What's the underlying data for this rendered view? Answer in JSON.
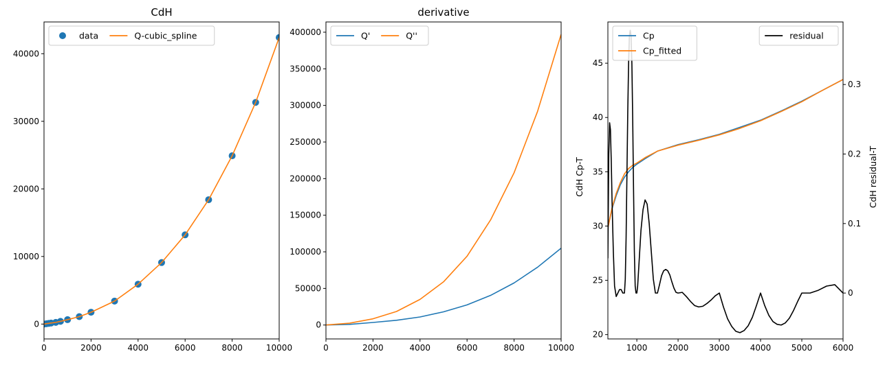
{
  "chart_data": [
    {
      "type": "line",
      "title": "CdH",
      "xlim": [
        0,
        10000
      ],
      "ylim": [
        -2200,
        44700
      ],
      "x_ticks": [
        0,
        2000,
        4000,
        6000,
        8000,
        10000
      ],
      "y_ticks": [
        0,
        10000,
        20000,
        30000,
        40000
      ],
      "legend_position": "top-left",
      "legend_columns": 2,
      "colors": {
        "data": "#1f77b4",
        "Q-cubic_spline": "#ff7f0e"
      },
      "series": [
        {
          "name": "data",
          "kind": "scatter",
          "x": [
            1,
            100,
            200,
            300,
            500,
            700,
            1000,
            1500,
            2000,
            3000,
            4000,
            5000,
            6000,
            7000,
            8000,
            9000,
            10000
          ],
          "y": [
            0,
            50,
            100,
            150,
            250,
            400,
            650,
            1100,
            1750,
            3400,
            5900,
            9100,
            13200,
            18400,
            24900,
            32800,
            42400
          ]
        },
        {
          "name": "Q-cubic_spline",
          "kind": "line",
          "x": [
            1,
            100,
            200,
            300,
            500,
            700,
            1000,
            1500,
            2000,
            3000,
            4000,
            5000,
            6000,
            7000,
            8000,
            9000,
            10000
          ],
          "y": [
            0,
            50,
            100,
            150,
            250,
            400,
            650,
            1100,
            1750,
            3400,
            5900,
            9100,
            13200,
            18400,
            24900,
            32800,
            42400
          ]
        }
      ]
    },
    {
      "type": "line",
      "title": "derivative",
      "xlim": [
        0,
        10000
      ],
      "ylim": [
        -19000,
        414000
      ],
      "x_ticks": [
        0,
        2000,
        4000,
        6000,
        8000,
        10000
      ],
      "y_ticks": [
        0,
        50000,
        100000,
        150000,
        200000,
        250000,
        300000,
        350000,
        400000
      ],
      "legend_position": "top-left",
      "legend_columns": 2,
      "colors": {
        "Q'": "#1f77b4",
        "Q''": "#ff7f0e"
      },
      "series": [
        {
          "name": "Q'",
          "x": [
            0,
            1000,
            2000,
            3000,
            4000,
            5000,
            6000,
            7000,
            8000,
            9000,
            10000
          ],
          "y": [
            0,
            900,
            3500,
            6500,
            11000,
            18000,
            27500,
            40500,
            57500,
            79000,
            105000
          ]
        },
        {
          "name": "Q''",
          "x": [
            0,
            1000,
            2000,
            3000,
            4000,
            5000,
            6000,
            7000,
            8000,
            9000,
            10000
          ],
          "y": [
            0,
            2500,
            8500,
            18500,
            35000,
            59000,
            94000,
            143500,
            208000,
            292000,
            397000
          ]
        }
      ]
    },
    {
      "type": "line",
      "title": "",
      "xlim": [
        298,
        6000
      ],
      "x_ticks": [
        1000,
        2000,
        3000,
        4000,
        5000,
        6000
      ],
      "ylabel": "CdH Cp-T",
      "ylim": [
        19.6,
        48.8
      ],
      "y_ticks": [
        20,
        25,
        30,
        35,
        40,
        45
      ],
      "ylabel_right": "CdH residual-T",
      "ylim_right": [
        -0.066,
        0.39
      ],
      "y_ticks_right": [
        0.0,
        0.1,
        0.2,
        0.3
      ],
      "legend_left_position": "top-left",
      "legend_right_position": "top-right",
      "colors": {
        "Cp": "#1f77b4",
        "Cp_fitted": "#ff7f0e",
        "residual": "#000000"
      },
      "series": [
        {
          "name": "Cp",
          "axis": "left",
          "x": [
            298,
            400,
            500,
            600,
            700,
            800,
            900,
            1000,
            1200,
            1500,
            2000,
            2500,
            3000,
            3500,
            4000,
            4500,
            5000,
            5500,
            6000
          ],
          "y": [
            29.9,
            31.6,
            32.8,
            33.8,
            34.5,
            35.0,
            35.4,
            35.7,
            36.2,
            36.9,
            37.5,
            37.95,
            38.45,
            39.1,
            39.75,
            40.6,
            41.5,
            42.5,
            43.5
          ]
        },
        {
          "name": "Cp_fitted",
          "axis": "left",
          "x": [
            298,
            400,
            500,
            600,
            700,
            800,
            900,
            1000,
            1200,
            1500,
            2000,
            2500,
            3000,
            3500,
            4000,
            4500,
            5000,
            5500,
            6000
          ],
          "y": [
            29.8,
            31.7,
            33.0,
            34.0,
            34.8,
            35.3,
            35.6,
            35.8,
            36.3,
            36.9,
            37.45,
            37.9,
            38.4,
            39.0,
            39.7,
            40.55,
            41.45,
            42.5,
            43.5
          ]
        },
        {
          "name": "residual",
          "axis": "right",
          "x": [
            298,
            320,
            340,
            360,
            380,
            400,
            430,
            460,
            500,
            540,
            580,
            620,
            660,
            690,
            700,
            720,
            740,
            760,
            780,
            800,
            820,
            840,
            860,
            880,
            900,
            920,
            940,
            960,
            980,
            1000,
            1020,
            1050,
            1100,
            1150,
            1200,
            1250,
            1300,
            1350,
            1400,
            1450,
            1500,
            1550,
            1600,
            1650,
            1700,
            1750,
            1800,
            1850,
            1900,
            1950,
            2000,
            2100,
            2200,
            2300,
            2400,
            2500,
            2600,
            2700,
            2800,
            2900,
            3000,
            3100,
            3200,
            3300,
            3400,
            3500,
            3600,
            3700,
            3800,
            3900,
            4000,
            4100,
            4200,
            4300,
            4400,
            4500,
            4600,
            4700,
            4800,
            4900,
            5000,
            5200,
            5400,
            5600,
            5800,
            6000
          ],
          "y": [
            0.05,
            0.2,
            0.245,
            0.235,
            0.19,
            0.13,
            0.06,
            0.01,
            -0.005,
            0.0,
            0.005,
            0.005,
            0.0,
            0.0,
            0.0,
            0.02,
            0.08,
            0.17,
            0.26,
            0.33,
            0.37,
            0.378,
            0.37,
            0.33,
            0.25,
            0.15,
            0.06,
            0.01,
            0.0,
            0.0,
            0.01,
            0.04,
            0.09,
            0.12,
            0.134,
            0.128,
            0.1,
            0.06,
            0.02,
            0.0,
            0.0,
            0.012,
            0.025,
            0.032,
            0.034,
            0.032,
            0.026,
            0.016,
            0.007,
            0.001,
            0.0,
            0.001,
            -0.005,
            -0.012,
            -0.018,
            -0.02,
            -0.019,
            -0.015,
            -0.01,
            -0.004,
            0.0,
            -0.02,
            -0.037,
            -0.048,
            -0.055,
            -0.057,
            -0.054,
            -0.047,
            -0.035,
            -0.018,
            0.0,
            -0.018,
            -0.032,
            -0.041,
            -0.045,
            -0.046,
            -0.043,
            -0.036,
            -0.025,
            -0.012,
            0.0,
            0.0,
            0.004,
            0.01,
            0.012,
            0.0
          ]
        }
      ]
    }
  ]
}
